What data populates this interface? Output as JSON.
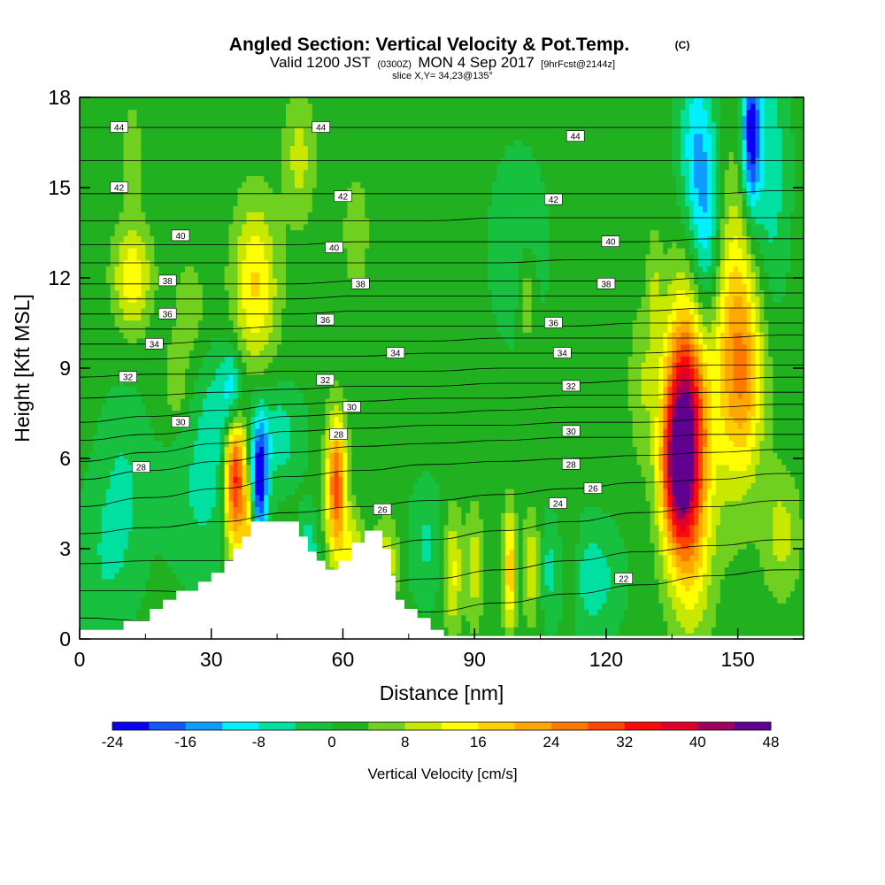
{
  "title": {
    "main": "Angled Section: Vertical Velocity & Pot.Temp.",
    "main_suffix": "(C)",
    "valid_prefix": "Valid 1200 JST",
    "valid_utc": "(0300Z)",
    "valid_date": "MON 4 Sep 2017",
    "valid_fcst": "[9hrFcst@2144z]",
    "slice": "slice X,Y= 34,23@135°"
  },
  "chart_data": {
    "type": "heatmap",
    "xlabel": "Distance [nm]",
    "ylabel": "Height [Kft MSL]",
    "xlim": [
      0,
      165
    ],
    "ylim": [
      0,
      18
    ],
    "x_ticks": [
      "0",
      "30",
      "60",
      "90",
      "120",
      "150"
    ],
    "x_tick_values": [
      0,
      30,
      60,
      90,
      120,
      150
    ],
    "y_ticks": [
      "0",
      "3",
      "6",
      "9",
      "12",
      "15",
      "18"
    ],
    "y_tick_values": [
      0,
      3,
      6,
      9,
      12,
      15,
      18
    ],
    "colorbar": {
      "label": "Vertical Velocity [cm/s]",
      "levels": [
        -24,
        -20,
        -16,
        -12,
        -8,
        -4,
        0,
        4,
        8,
        12,
        16,
        20,
        24,
        28,
        32,
        36,
        40,
        44,
        48
      ],
      "tick_labels": [
        "-24",
        "-16",
        "-8",
        "0",
        "8",
        "16",
        "24",
        "32",
        "40",
        "48"
      ],
      "colors": [
        "#0a00f5",
        "#1457ff",
        "#0e9cff",
        "#00f0ff",
        "#00e0a0",
        "#18c040",
        "#20b020",
        "#70d020",
        "#c8e800",
        "#ffff00",
        "#ffd000",
        "#ffa800",
        "#ff7800",
        "#ff4500",
        "#ff0a0a",
        "#e0002a",
        "#a0005c",
        "#60008f"
      ]
    },
    "velocity_features": [
      {
        "x": 12,
        "y": 12,
        "sx": 3,
        "sy": 1.2,
        "w": 14
      },
      {
        "x": 12,
        "y": 16,
        "sx": 1.5,
        "sy": 1.2,
        "w": 6
      },
      {
        "x": 35,
        "y": 8.2,
        "sx": 1.6,
        "sy": 1.0,
        "w": -14
      },
      {
        "x": 33,
        "y": 7.5,
        "sx": 4,
        "sy": 1.5,
        "w": -8
      },
      {
        "x": 35.5,
        "y": 5.5,
        "sx": 1.8,
        "sy": 1.8,
        "w": 36
      },
      {
        "x": 41,
        "y": 5.2,
        "sx": 1.3,
        "sy": 1.4,
        "w": -24
      },
      {
        "x": 38.5,
        "y": 3.3,
        "sx": 1.0,
        "sy": 1.2,
        "w": 14
      },
      {
        "x": 58.5,
        "y": 5.1,
        "sx": 1.6,
        "sy": 1.6,
        "w": 28
      },
      {
        "x": 45,
        "y": 6.8,
        "sx": 4,
        "sy": 1.2,
        "w": -8
      },
      {
        "x": 40,
        "y": 11.7,
        "sx": 3.5,
        "sy": 2.0,
        "w": 15
      },
      {
        "x": 50,
        "y": 16,
        "sx": 2.5,
        "sy": 1.5,
        "w": 8
      },
      {
        "x": 63,
        "y": 13.5,
        "sx": 2,
        "sy": 1.3,
        "w": 6
      },
      {
        "x": 28,
        "y": 4.8,
        "sx": 6,
        "sy": 2,
        "w": -6
      },
      {
        "x": 52,
        "y": 2.7,
        "sx": 1.5,
        "sy": 1.0,
        "w": -10
      },
      {
        "x": 62,
        "y": 2.7,
        "sx": 2,
        "sy": 1,
        "w": 12
      },
      {
        "x": 70,
        "y": 2.6,
        "sx": 2,
        "sy": 1,
        "w": 10
      },
      {
        "x": 79,
        "y": 3.2,
        "sx": 3,
        "sy": 1.4,
        "w": -6
      },
      {
        "x": 85,
        "y": 2.3,
        "sx": 1.5,
        "sy": 1.4,
        "w": 12
      },
      {
        "x": 90,
        "y": 2.4,
        "sx": 1.4,
        "sy": 1.4,
        "w": 9
      },
      {
        "x": 98,
        "y": 2.3,
        "sx": 1.0,
        "sy": 1.4,
        "w": 18
      },
      {
        "x": 103,
        "y": 2.4,
        "sx": 1.3,
        "sy": 1.3,
        "w": 10
      },
      {
        "x": 107,
        "y": 2.3,
        "sx": 1.5,
        "sy": 1.3,
        "w": -6
      },
      {
        "x": 112,
        "y": 2.5,
        "sx": 1.2,
        "sy": 1.3,
        "w": 6
      },
      {
        "x": 117,
        "y": 2.0,
        "sx": 4.5,
        "sy": 1.3,
        "w": -8
      },
      {
        "x": 102,
        "y": 11.2,
        "sx": 1.2,
        "sy": 1.0,
        "w": 8
      },
      {
        "x": 100,
        "y": 13,
        "sx": 6,
        "sy": 3,
        "w": -3
      },
      {
        "x": 128,
        "y": 8.5,
        "sx": 2,
        "sy": 1.8,
        "w": 6
      },
      {
        "x": 131,
        "y": 11.5,
        "sx": 1.2,
        "sy": 1.5,
        "w": 6
      },
      {
        "x": 138,
        "y": 7.0,
        "sx": 3.5,
        "sy": 2.8,
        "w": 44
      },
      {
        "x": 136,
        "y": 5.5,
        "sx": 2.5,
        "sy": 1.5,
        "w": 18
      },
      {
        "x": 139.5,
        "y": 2.5,
        "sx": 3.5,
        "sy": 2.0,
        "w": 8
      },
      {
        "x": 149,
        "y": 10,
        "sx": 4,
        "sy": 3.5,
        "w": 18
      },
      {
        "x": 152,
        "y": 8.5,
        "sx": 3,
        "sy": 2.0,
        "w": 10
      },
      {
        "x": 143,
        "y": 13.5,
        "sx": 2.5,
        "sy": 2.8,
        "w": -14
      },
      {
        "x": 153,
        "y": 16.8,
        "sx": 1.5,
        "sy": 1.8,
        "w": -24
      },
      {
        "x": 157,
        "y": 15.5,
        "sx": 3,
        "sy": 3,
        "w": -9
      },
      {
        "x": 140,
        "y": 16.5,
        "sx": 2.5,
        "sy": 2.0,
        "w": -10
      },
      {
        "x": 160,
        "y": 3.5,
        "sx": 3,
        "sy": 1.5,
        "w": 8
      },
      {
        "x": 6,
        "y": 2.5,
        "sx": 5,
        "sy": 2,
        "w": -5
      },
      {
        "x": 10,
        "y": 5.5,
        "sx": 4,
        "sy": 2,
        "w": -5
      },
      {
        "x": 22,
        "y": 8.5,
        "sx": 2,
        "sy": 1.0,
        "w": 6
      },
      {
        "x": 25,
        "y": 11,
        "sx": 2.5,
        "sy": 1.2,
        "w": 5
      }
    ],
    "terrain": [
      [
        0,
        0.3
      ],
      [
        9,
        0.3
      ],
      [
        10,
        0.6
      ],
      [
        13,
        0.6
      ],
      [
        16,
        1.0
      ],
      [
        19,
        1.3
      ],
      [
        22,
        1.6
      ],
      [
        25,
        1.6
      ],
      [
        27,
        1.9
      ],
      [
        30,
        2.2
      ],
      [
        33,
        2.6
      ],
      [
        35,
        3.0
      ],
      [
        37,
        3.4
      ],
      [
        39,
        3.9
      ],
      [
        44,
        3.9
      ],
      [
        48,
        3.9
      ],
      [
        50,
        3.4
      ],
      [
        52,
        2.9
      ],
      [
        54,
        2.6
      ],
      [
        56,
        2.3
      ],
      [
        59,
        2.6
      ],
      [
        62,
        3.2
      ],
      [
        65,
        3.6
      ],
      [
        67,
        3.6
      ],
      [
        69,
        3.0
      ],
      [
        71,
        2.1
      ],
      [
        72,
        1.3
      ],
      [
        74,
        1.0
      ],
      [
        77,
        0.7
      ],
      [
        80,
        0.3
      ],
      [
        83,
        0.1
      ],
      [
        165,
        0.1
      ]
    ],
    "theta_contours": [
      {
        "level": 22,
        "y": [
          0.7,
          0.6,
          0.6,
          0.6,
          0.7,
          0.9,
          1.2,
          1.5,
          1.8,
          2.1,
          2.3
        ]
      },
      {
        "level": 23,
        "y": [
          1.6,
          1.6,
          1.5,
          1.6,
          1.8,
          2.0,
          2.3,
          2.6,
          2.9,
          3.1,
          3.3
        ]
      },
      {
        "level": 24,
        "y": [
          2.5,
          2.6,
          2.6,
          2.8,
          3.0,
          3.3,
          3.6,
          3.9,
          4.2,
          4.4,
          4.6
        ]
      },
      {
        "level": 25,
        "y": [
          3.5,
          3.7,
          3.9,
          4.2,
          4.4,
          4.6,
          4.8,
          5.0,
          5.2,
          5.3,
          5.5
        ]
      },
      {
        "level": 26,
        "y": [
          4.4,
          4.7,
          5.0,
          5.4,
          5.6,
          5.8,
          5.9,
          6.0,
          6.1,
          6.2,
          6.3
        ]
      },
      {
        "level": 27,
        "y": [
          5.3,
          5.6,
          5.9,
          6.2,
          6.4,
          6.5,
          6.6,
          6.7,
          6.7,
          6.8,
          6.8
        ]
      },
      {
        "level": 28,
        "y": [
          5.9,
          6.2,
          6.5,
          6.9,
          7.0,
          7.1,
          7.1,
          7.2,
          7.2,
          7.3,
          7.3
        ]
      },
      {
        "level": 29,
        "y": [
          6.6,
          6.8,
          7.0,
          7.4,
          7.5,
          7.5,
          7.6,
          7.7,
          7.7,
          7.7,
          7.8
        ]
      },
      {
        "level": 30,
        "y": [
          7.2,
          7.4,
          7.6,
          7.8,
          7.9,
          8.0,
          8.0,
          8.1,
          8.1,
          8.2,
          8.2
        ]
      },
      {
        "level": 31,
        "y": [
          8.0,
          8.1,
          8.2,
          8.3,
          8.4,
          8.4,
          8.5,
          8.5,
          8.6,
          8.6,
          8.7
        ]
      },
      {
        "level": 32,
        "y": [
          8.7,
          8.8,
          8.8,
          8.9,
          8.9,
          8.9,
          9.0,
          9.0,
          9.0,
          9.1,
          9.1
        ]
      },
      {
        "level": 33,
        "y": [
          9.3,
          9.3,
          9.4,
          9.4,
          9.4,
          9.5,
          9.5,
          9.5,
          9.5,
          9.6,
          9.6
        ]
      },
      {
        "level": 34,
        "y": [
          9.8,
          9.8,
          9.9,
          9.9,
          9.9,
          9.9,
          10.0,
          10.0,
          10.0,
          10.0,
          10.1
        ]
      },
      {
        "level": 35,
        "y": [
          10.3,
          10.3,
          10.3,
          10.4,
          10.4,
          10.4,
          10.4,
          10.4,
          10.5,
          10.5,
          10.5
        ]
      },
      {
        "level": 36,
        "y": [
          10.8,
          10.8,
          10.8,
          10.8,
          10.9,
          10.9,
          10.9,
          10.9,
          10.9,
          11.0,
          11.0
        ]
      },
      {
        "level": 37,
        "y": [
          11.3,
          11.3,
          11.3,
          11.3,
          11.4,
          11.4,
          11.4,
          11.4,
          11.4,
          11.5,
          11.5
        ]
      },
      {
        "level": 38,
        "y": [
          11.8,
          11.8,
          11.8,
          11.8,
          11.9,
          11.9,
          11.9,
          11.9,
          11.9,
          12.0,
          12.0
        ]
      },
      {
        "level": 39,
        "y": [
          12.5,
          12.5,
          12.5,
          12.5,
          12.5,
          12.5,
          12.5,
          12.6,
          12.6,
          12.6,
          12.6
        ]
      },
      {
        "level": 40,
        "y": [
          13.1,
          13.1,
          13.1,
          13.1,
          13.2,
          13.2,
          13.2,
          13.2,
          13.2,
          13.3,
          13.3
        ]
      },
      {
        "level": 41,
        "y": [
          13.9,
          13.9,
          13.9,
          13.9,
          13.9,
          13.9,
          14.0,
          14.0,
          14.0,
          14.0,
          14.0
        ]
      },
      {
        "level": 42,
        "y": [
          14.8,
          14.8,
          14.8,
          14.8,
          14.8,
          14.8,
          14.8,
          14.8,
          14.8,
          14.8,
          14.9
        ]
      },
      {
        "level": 43,
        "y": [
          15.9,
          15.9,
          15.9,
          15.9,
          15.9,
          15.9,
          15.9,
          15.9,
          15.9,
          15.9,
          15.9
        ]
      },
      {
        "level": 44,
        "y": [
          17.0,
          17.0,
          17.0,
          17.0,
          17.0,
          17.0,
          17.0,
          17.0,
          17.0,
          17.0,
          17.0
        ]
      }
    ],
    "theta_x": [
      0,
      16,
      32,
      48,
      64,
      80,
      96,
      112,
      128,
      144,
      160
    ],
    "theta_labels": [
      {
        "text": "44",
        "x": 9,
        "y": 17.0
      },
      {
        "text": "44",
        "x": 55,
        "y": 17.0
      },
      {
        "text": "44",
        "x": 113,
        "y": 16.7
      },
      {
        "text": "42",
        "x": 9,
        "y": 15.0
      },
      {
        "text": "42",
        "x": 60,
        "y": 14.7
      },
      {
        "text": "42",
        "x": 108,
        "y": 14.6
      },
      {
        "text": "40",
        "x": 23,
        "y": 13.4
      },
      {
        "text": "40",
        "x": 58,
        "y": 13.0
      },
      {
        "text": "40",
        "x": 121,
        "y": 13.2
      },
      {
        "text": "38",
        "x": 20,
        "y": 11.9
      },
      {
        "text": "38",
        "x": 64,
        "y": 11.8
      },
      {
        "text": "38",
        "x": 120,
        "y": 11.8
      },
      {
        "text": "36",
        "x": 20,
        "y": 10.8
      },
      {
        "text": "36",
        "x": 56,
        "y": 10.6
      },
      {
        "text": "36",
        "x": 108,
        "y": 10.5
      },
      {
        "text": "34",
        "x": 17,
        "y": 9.8
      },
      {
        "text": "34",
        "x": 72,
        "y": 9.5
      },
      {
        "text": "34",
        "x": 110,
        "y": 9.5
      },
      {
        "text": "32",
        "x": 11,
        "y": 8.7
      },
      {
        "text": "32",
        "x": 56,
        "y": 8.6
      },
      {
        "text": "32",
        "x": 112,
        "y": 8.4
      },
      {
        "text": "30",
        "x": 23,
        "y": 7.2
      },
      {
        "text": "30",
        "x": 62,
        "y": 7.7
      },
      {
        "text": "30",
        "x": 112,
        "y": 6.9
      },
      {
        "text": "28",
        "x": 14,
        "y": 5.7
      },
      {
        "text": "28",
        "x": 59,
        "y": 6.8
      },
      {
        "text": "28",
        "x": 112,
        "y": 5.8
      },
      {
        "text": "26",
        "x": 69,
        "y": 4.3
      },
      {
        "text": "26",
        "x": 117,
        "y": 5.0
      },
      {
        "text": "24",
        "x": 109,
        "y": 4.5
      },
      {
        "text": "22",
        "x": 124,
        "y": 2.0
      }
    ]
  }
}
